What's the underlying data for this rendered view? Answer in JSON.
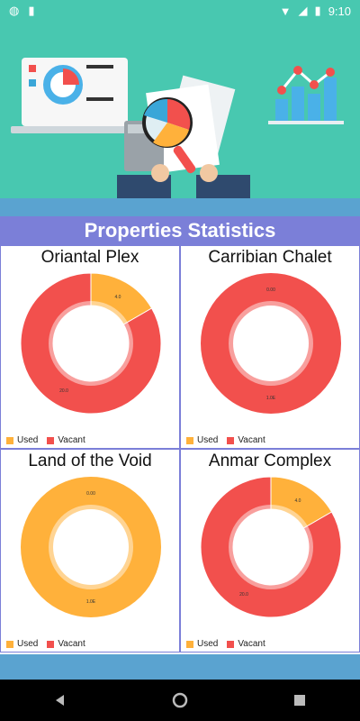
{
  "status_bar": {
    "time": "9:10"
  },
  "page_title": "Properties Statistics",
  "legend": {
    "used": "Used",
    "vacant": "Vacant"
  },
  "colors": {
    "used": "#ffb13b",
    "vacant": "#f2504d",
    "accent": "#7b7fd8",
    "hero_bg": "#48c8b0"
  },
  "hero_icons": [
    "laptop-icon",
    "magnifier-icon",
    "calculator-icon",
    "bar-chart-icon"
  ],
  "properties": [
    {
      "name": "Oriantal Plex",
      "used": 4,
      "vacant": 20,
      "used_label": "4.0",
      "vacant_label": "20.0"
    },
    {
      "name": "Carribian Chalet",
      "used": 0,
      "vacant": 1,
      "used_label": "0.00",
      "vacant_label": "1.0E"
    },
    {
      "name": "Land of the Void",
      "used": 1,
      "vacant": 0,
      "used_label": "1.0E",
      "vacant_label": "0.00"
    },
    {
      "name": "Anmar Complex",
      "used": 4,
      "vacant": 20,
      "used_label": "4.0",
      "vacant_label": "20.0"
    }
  ]
}
